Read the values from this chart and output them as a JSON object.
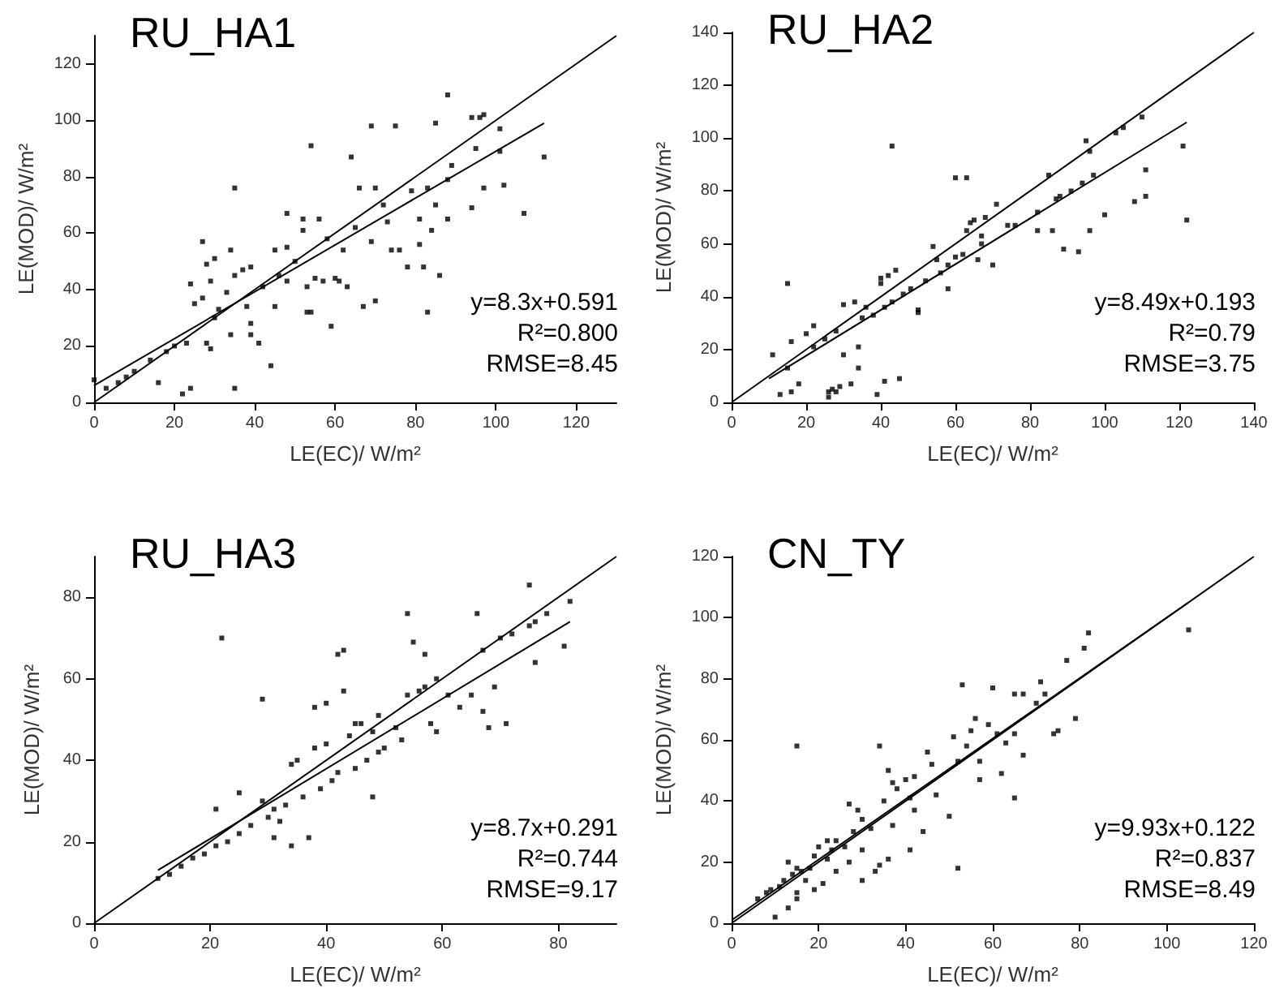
{
  "chart_data": [
    {
      "type": "scatter",
      "title": "RU_HA1",
      "xlabel": "LE(EC)/ W/m²",
      "ylabel": "LE(MOD)/ W/m²",
      "xlim": [
        0,
        130
      ],
      "ylim": [
        0,
        130
      ],
      "xticks": [
        0,
        20,
        40,
        60,
        80,
        100,
        120
      ],
      "yticks": [
        0,
        20,
        40,
        60,
        80,
        100,
        120
      ],
      "marker": "square",
      "series": [
        {
          "color": "#000000",
          "x": [
            0,
            3,
            6,
            8,
            10,
            14,
            16,
            18,
            20,
            22,
            23,
            24,
            24,
            25,
            27,
            27,
            28,
            28,
            29,
            29,
            30,
            30,
            31,
            33,
            34,
            35,
            35,
            35,
            34,
            37,
            38,
            39,
            39,
            39,
            41,
            42,
            44,
            45,
            45,
            46,
            48,
            48,
            48,
            50,
            52,
            52,
            53,
            53,
            54,
            54,
            55,
            56,
            57,
            58,
            59,
            60,
            61,
            62,
            63,
            64,
            65,
            66,
            67,
            69,
            69,
            70,
            70,
            72,
            73,
            74,
            75,
            76,
            78,
            79,
            81,
            81,
            82,
            83,
            83,
            84,
            85,
            86,
            85,
            88,
            88,
            88,
            89,
            94,
            95,
            96,
            97,
            97,
            94,
            101,
            101,
            102,
            107,
            112
          ],
          "values": [
            8,
            5,
            7,
            9,
            11,
            15,
            7,
            18,
            20,
            3,
            21,
            5,
            42,
            35,
            57,
            37,
            49,
            21,
            19,
            43,
            30,
            51,
            33,
            39,
            24,
            76,
            45,
            5,
            54,
            47,
            34,
            28,
            24,
            48,
            21,
            41,
            13,
            34,
            54,
            45,
            55,
            67,
            43,
            50,
            61,
            65,
            41,
            32,
            91,
            32,
            44,
            65,
            43,
            58,
            27,
            44,
            43,
            54,
            41,
            87,
            62,
            76,
            34,
            98,
            57,
            76,
            36,
            70,
            64,
            54,
            98,
            54,
            48,
            75,
            65,
            56,
            48,
            76,
            32,
            61,
            99,
            45,
            70,
            109,
            65,
            79,
            84,
            101,
            90,
            101,
            102,
            76,
            69,
            97,
            89,
            77,
            67,
            87
          ]
        },
        {
          "type": "line",
          "marker": "none",
          "color": "#000000",
          "x": [
            0,
            130
          ],
          "values": [
            0,
            130
          ]
        },
        {
          "type": "line",
          "marker": "none",
          "color": "#000000",
          "x": [
            0,
            112
          ],
          "values": [
            6,
            99
          ]
        }
      ],
      "annotations": [
        "y=8.3x+0.591",
        "R²=0.800",
        "RMSE=8.45"
      ]
    },
    {
      "type": "scatter",
      "title": "RU_HA2",
      "xlabel": "LE(EC)/ W/m²",
      "ylabel": "LE(MOD)/ W/m²",
      "xlim": [
        0,
        140
      ],
      "ylim": [
        0,
        140
      ],
      "xticks": [
        0,
        20,
        40,
        60,
        80,
        100,
        120,
        140
      ],
      "yticks": [
        0,
        20,
        40,
        60,
        80,
        100,
        120,
        140
      ],
      "marker": "square",
      "series": [
        {
          "color": "#000000",
          "x": [
            11,
            13,
            15,
            15,
            16,
            16,
            18,
            20,
            22,
            22,
            25,
            26,
            26,
            27,
            28,
            28,
            29,
            30,
            30,
            32,
            33,
            34,
            34,
            35,
            36,
            38,
            39,
            40,
            40,
            41,
            41,
            42,
            43,
            43,
            44,
            45,
            46,
            48,
            50,
            50,
            52,
            54,
            55,
            56,
            58,
            58,
            60,
            60,
            62,
            63,
            63,
            64,
            65,
            66,
            67,
            67,
            68,
            70,
            71,
            74,
            76,
            82,
            82,
            85,
            86,
            87,
            88,
            89,
            91,
            93,
            94,
            95,
            96,
            96,
            97,
            100,
            103,
            105,
            108,
            110,
            111,
            111,
            121,
            122
          ],
          "values": [
            18,
            3,
            45,
            13,
            23,
            4,
            7,
            26,
            29,
            21,
            24,
            4,
            2,
            5,
            27,
            4,
            6,
            37,
            18,
            7,
            38,
            21,
            13,
            32,
            36,
            33,
            3,
            47,
            45,
            36,
            8,
            48,
            97,
            38,
            50,
            9,
            41,
            43,
            35,
            34,
            46,
            59,
            54,
            49,
            52,
            43,
            85,
            55,
            56,
            85,
            65,
            68,
            69,
            54,
            60,
            63,
            70,
            52,
            75,
            67,
            67,
            72,
            65,
            86,
            65,
            77,
            78,
            58,
            80,
            57,
            83,
            99,
            95,
            65,
            86,
            71,
            102,
            104,
            76,
            108,
            88,
            78,
            97,
            69
          ]
        },
        {
          "type": "line",
          "marker": "none",
          "color": "#000000",
          "x": [
            0,
            140
          ],
          "values": [
            0,
            140
          ]
        },
        {
          "type": "line",
          "marker": "none",
          "color": "#000000",
          "x": [
            10,
            122
          ],
          "values": [
            9,
            106
          ]
        }
      ],
      "annotations": [
        "y=8.49x+0.193",
        "R²=0.79",
        "RMSE=3.75"
      ]
    },
    {
      "type": "scatter",
      "title": "RU_HA3",
      "xlabel": "LE(EC)/ W/m²",
      "ylabel": "LE(MOD)/ W/m²",
      "xlim": [
        0,
        90
      ],
      "ylim": [
        0,
        90
      ],
      "xticks": [
        0,
        20,
        40,
        60,
        80
      ],
      "yticks": [
        0,
        20,
        40,
        60,
        80
      ],
      "marker": "square",
      "series": [
        {
          "color": "#000000",
          "x": [
            11,
            13,
            15,
            17,
            19,
            21,
            21,
            22,
            23,
            25,
            25,
            27,
            29,
            29,
            30,
            31,
            31,
            32,
            33,
            34,
            34,
            35,
            36,
            37,
            38,
            38,
            39,
            40,
            40,
            41,
            42,
            42,
            43,
            43,
            44,
            45,
            45,
            46,
            47,
            48,
            48,
            49,
            49,
            50,
            52,
            53,
            54,
            54,
            55,
            56,
            57,
            57,
            58,
            59,
            59,
            61,
            63,
            65,
            66,
            67,
            67,
            68,
            69,
            70,
            71,
            72,
            75,
            75,
            76,
            76,
            78,
            81,
            82
          ],
          "values": [
            11,
            12,
            14,
            16,
            17,
            28,
            19,
            70,
            20,
            32,
            22,
            24,
            30,
            55,
            26,
            28,
            21,
            25,
            29,
            39,
            19,
            40,
            31,
            21,
            43,
            53,
            33,
            54,
            44,
            35,
            66,
            37,
            57,
            67,
            46,
            49,
            38,
            49,
            40,
            47,
            31,
            51,
            42,
            43,
            48,
            45,
            76,
            56,
            69,
            57,
            66,
            58,
            49,
            60,
            47,
            56,
            53,
            56,
            76,
            52,
            67,
            48,
            58,
            70,
            49,
            71,
            83,
            73,
            64,
            74,
            76,
            68,
            79
          ]
        },
        {
          "type": "line",
          "marker": "none",
          "color": "#000000",
          "x": [
            0,
            90
          ],
          "values": [
            0,
            90
          ]
        },
        {
          "type": "line",
          "marker": "none",
          "color": "#000000",
          "x": [
            11,
            82
          ],
          "values": [
            13,
            74
          ]
        }
      ],
      "annotations": [
        "y=8.7x+0.291",
        "R²=0.744",
        "RMSE=9.17"
      ]
    },
    {
      "type": "scatter",
      "title": "CN_TY",
      "xlabel": "LE(EC)/ W/m²",
      "ylabel": "LE(MOD)/ W/m²",
      "xlim": [
        0,
        120
      ],
      "ylim": [
        0,
        120
      ],
      "xticks": [
        0,
        20,
        40,
        60,
        80,
        100,
        120
      ],
      "yticks": [
        0,
        20,
        40,
        60,
        80,
        100,
        120
      ],
      "marker": "square",
      "series": [
        {
          "color": "#000000",
          "x": [
            6,
            8,
            9,
            10,
            11,
            12,
            13,
            13,
            14,
            15,
            15,
            15,
            15,
            16,
            17,
            18,
            19,
            19,
            20,
            21,
            22,
            22,
            23,
            24,
            24,
            26,
            27,
            27,
            28,
            29,
            30,
            30,
            30,
            32,
            33,
            34,
            34,
            35,
            36,
            36,
            37,
            37,
            38,
            40,
            41,
            41,
            42,
            42,
            44,
            45,
            46,
            47,
            50,
            51,
            52,
            52,
            53,
            54,
            55,
            56,
            57,
            57,
            59,
            60,
            61,
            62,
            63,
            65,
            65,
            65,
            67,
            67,
            70,
            71,
            72,
            74,
            75,
            77,
            79,
            81,
            82,
            105
          ],
          "values": [
            8,
            10,
            11,
            2,
            12,
            14,
            20,
            5,
            16,
            18,
            10,
            58,
            8,
            17,
            14,
            18,
            22,
            11,
            25,
            13,
            21,
            27,
            24,
            27,
            17,
            25,
            39,
            20,
            30,
            37,
            34,
            24,
            14,
            31,
            17,
            58,
            19,
            40,
            50,
            21,
            46,
            32,
            44,
            47,
            41,
            24,
            48,
            37,
            30,
            56,
            52,
            42,
            35,
            61,
            18,
            53,
            78,
            58,
            63,
            67,
            47,
            53,
            65,
            77,
            62,
            49,
            59,
            41,
            75,
            62,
            55,
            75,
            72,
            79,
            75,
            62,
            63,
            86,
            67,
            90,
            95,
            96
          ]
        },
        {
          "type": "line",
          "marker": "none",
          "color": "#000000",
          "x": [
            0,
            120
          ],
          "values": [
            0,
            120
          ]
        },
        {
          "type": "line",
          "marker": "none",
          "color": "#000000",
          "x": [
            0,
            105
          ],
          "values": [
            1,
            105
          ]
        }
      ],
      "annotations": [
        "y=9.93x+0.122",
        "R²=0.837",
        "RMSE=8.49"
      ]
    }
  ]
}
